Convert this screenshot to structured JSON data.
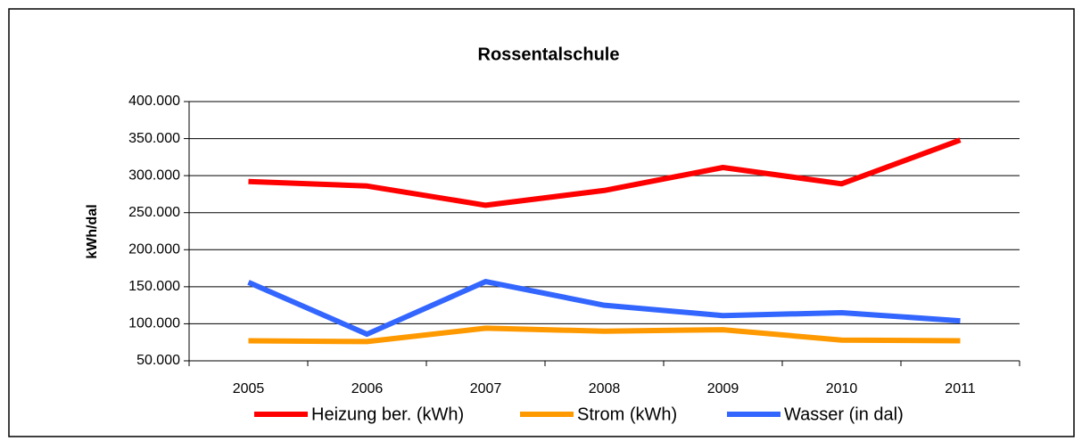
{
  "chart_data": {
    "type": "line",
    "title": "Rossentalschule",
    "y_label": "kWh/dal",
    "categories": [
      "2005",
      "2006",
      "2007",
      "2008",
      "2009",
      "2010",
      "2011"
    ],
    "series": [
      {
        "name": "Heizung ber. (kWh)",
        "color": "#ff0000",
        "values": [
          292000,
          286000,
          260000,
          280000,
          311000,
          289000,
          348000
        ]
      },
      {
        "name": "Strom (kWh)",
        "color": "#ff9900",
        "values": [
          77000,
          76000,
          94000,
          90000,
          92000,
          78000,
          77000
        ]
      },
      {
        "name": "Wasser (in dal)",
        "color": "#3366ff",
        "values": [
          156000,
          86000,
          157000,
          125000,
          111000,
          115000,
          104000
        ]
      }
    ],
    "ylim": [
      50000,
      400000
    ],
    "yticks": [
      {
        "value": 50000,
        "label": "50.000"
      },
      {
        "value": 100000,
        "label": "100.000"
      },
      {
        "value": 150000,
        "label": "150.000"
      },
      {
        "value": 200000,
        "label": "200.000"
      },
      {
        "value": 250000,
        "label": "250.000"
      },
      {
        "value": 300000,
        "label": "300.000"
      },
      {
        "value": 350000,
        "label": "350.000"
      },
      {
        "value": 400000,
        "label": "400.000"
      }
    ],
    "grid": true,
    "legend": "bottom"
  }
}
